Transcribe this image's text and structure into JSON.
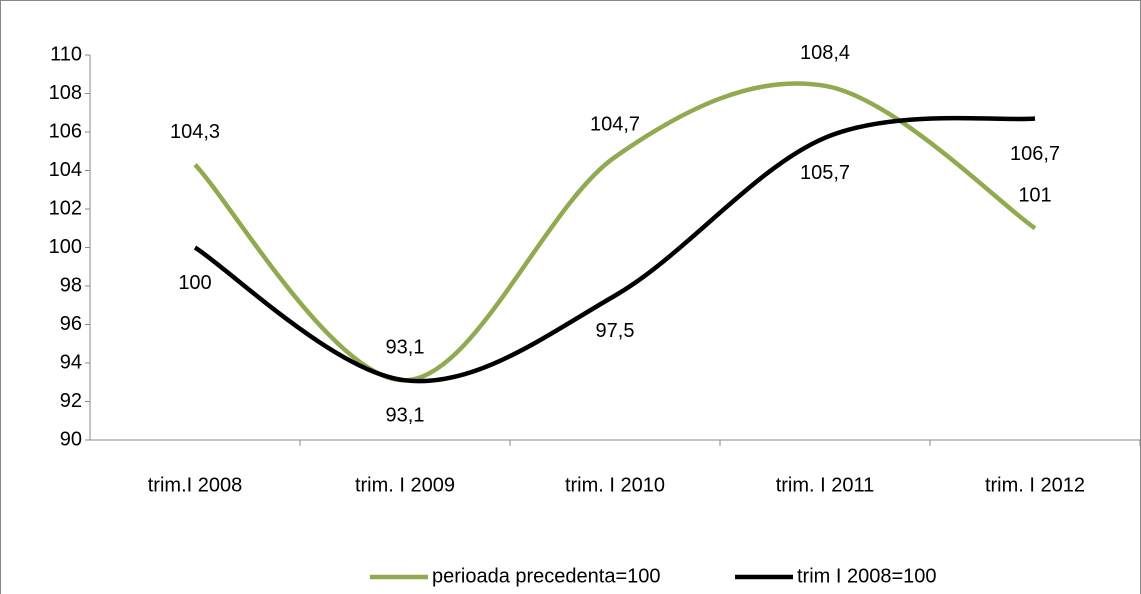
{
  "chart_data": {
    "type": "line",
    "categories": [
      "trim.I 2008",
      "trim. I 2009",
      "trim. I 2010",
      "trim. I 2011",
      "trim. I 2012"
    ],
    "series": [
      {
        "name": "perioada precedenta=100",
        "color": "#8faa4f",
        "values": [
          104.3,
          93.1,
          104.7,
          108.4,
          101
        ],
        "value_labels": [
          "104,3",
          "93,1",
          "104,7",
          "108,4",
          "101"
        ]
      },
      {
        "name": "trim I 2008=100",
        "color": "#000000",
        "values": [
          100,
          93.1,
          97.5,
          105.7,
          106.7
        ],
        "value_labels": [
          "100",
          "93,1",
          "97,5",
          "105,7",
          "106,7"
        ]
      }
    ],
    "ylim": [
      90,
      110
    ],
    "yticks": [
      90,
      92,
      94,
      96,
      98,
      100,
      102,
      104,
      106,
      108,
      110
    ],
    "grid": false,
    "smooth": true,
    "legend": "bottom"
  }
}
